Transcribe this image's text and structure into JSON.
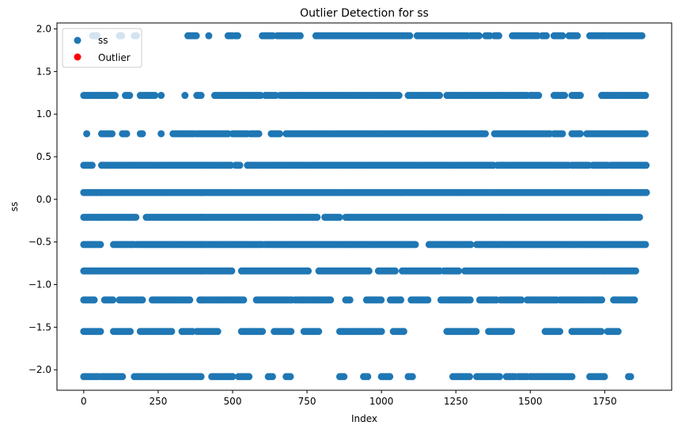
{
  "chart_data": {
    "type": "scatter",
    "title": "Outlier Detection for ss",
    "xlabel": "Index",
    "ylabel": "ss",
    "xlim": [
      -90,
      1975
    ],
    "ylim": [
      -2.24,
      2.07
    ],
    "x_ticks": [
      0,
      250,
      500,
      750,
      1000,
      1250,
      1500,
      1750
    ],
    "x_tick_labels": [
      "0",
      "250",
      "500",
      "750",
      "1000",
      "1250",
      "1500",
      "1750"
    ],
    "y_ticks": [
      -2.0,
      -1.5,
      -1.0,
      -0.5,
      0.0,
      0.5,
      1.0,
      1.5,
      2.0
    ],
    "y_tick_labels": [
      "−2.0",
      "−1.5",
      "−1.0",
      "−0.5",
      "0.0",
      "0.5",
      "1.0",
      "1.5",
      "2.0"
    ],
    "legend_position": "top-left",
    "grid": false,
    "series": [
      {
        "name": "ss",
        "color": "#1f77b4",
        "levels": [
          {
            "y": 1.92,
            "ranges": [
              [
                30,
                45
              ],
              [
                120,
                130
              ],
              [
                170,
                180
              ],
              [
                350,
                380
              ],
              [
                420,
                425
              ],
              [
                485,
                500
              ],
              [
                510,
                520
              ],
              [
                600,
                640
              ],
              [
                650,
                730
              ],
              [
                780,
                1100
              ],
              [
                1120,
                1290
              ],
              [
                1300,
                1330
              ],
              [
                1350,
                1370
              ],
              [
                1380,
                1400
              ],
              [
                1440,
                1530
              ],
              [
                1540,
                1560
              ],
              [
                1580,
                1610
              ],
              [
                1630,
                1660
              ],
              [
                1700,
                1880
              ]
            ]
          },
          {
            "y": 1.22,
            "ranges": [
              [
                0,
                110
              ],
              [
                140,
                160
              ],
              [
                190,
                240
              ],
              [
                260,
                265
              ],
              [
                340,
                345
              ],
              [
                380,
                400
              ],
              [
                440,
                600
              ],
              [
                610,
                650
              ],
              [
                660,
                1060
              ],
              [
                1090,
                1200
              ],
              [
                1220,
                1300
              ],
              [
                1300,
                1390
              ],
              [
                1390,
                1490
              ],
              [
                1500,
                1530
              ],
              [
                1580,
                1620
              ],
              [
                1640,
                1670
              ],
              [
                1740,
                1890
              ]
            ]
          },
          {
            "y": 0.77,
            "ranges": [
              [
                10,
                15
              ],
              [
                60,
                100
              ],
              [
                130,
                150
              ],
              [
                190,
                200
              ],
              [
                260,
                265
              ],
              [
                300,
                370
              ],
              [
                380,
                490
              ],
              [
                500,
                550
              ],
              [
                560,
                590
              ],
              [
                630,
                660
              ],
              [
                680,
                1300
              ],
              [
                1300,
                1350
              ],
              [
                1380,
                1440
              ],
              [
                1440,
                1570
              ],
              [
                1580,
                1610
              ],
              [
                1640,
                1670
              ],
              [
                1690,
                1890
              ]
            ]
          },
          {
            "y": 0.4,
            "ranges": [
              [
                0,
                30
              ],
              [
                60,
                500
              ],
              [
                510,
                530
              ],
              [
                550,
                1380
              ],
              [
                1390,
                1630
              ],
              [
                1640,
                1700
              ],
              [
                1710,
                1760
              ],
              [
                1770,
                1890
              ]
            ]
          },
          {
            "y": 0.08,
            "ranges": [
              [
                0,
                1890
              ]
            ]
          },
          {
            "y": -0.21,
            "ranges": [
              [
                0,
                180
              ],
              [
                210,
                790
              ],
              [
                810,
                860
              ],
              [
                880,
                1870
              ]
            ]
          },
          {
            "y": -0.53,
            "ranges": [
              [
                0,
                60
              ],
              [
                100,
                170
              ],
              [
                180,
                600
              ],
              [
                610,
                1120
              ],
              [
                1160,
                1300
              ],
              [
                1320,
                1890
              ]
            ]
          },
          {
            "y": -0.84,
            "ranges": [
              [
                0,
                500
              ],
              [
                530,
                760
              ],
              [
                790,
                960
              ],
              [
                990,
                1050
              ],
              [
                1070,
                1200
              ],
              [
                1210,
                1260
              ],
              [
                1280,
                1860
              ]
            ]
          },
          {
            "y": -1.18,
            "ranges": [
              [
                0,
                40
              ],
              [
                70,
                100
              ],
              [
                120,
                200
              ],
              [
                230,
                360
              ],
              [
                390,
                540
              ],
              [
                580,
                700
              ],
              [
                710,
                830
              ],
              [
                880,
                900
              ],
              [
                950,
                1000
              ],
              [
                1030,
                1070
              ],
              [
                1100,
                1160
              ],
              [
                1200,
                1300
              ],
              [
                1330,
                1390
              ],
              [
                1400,
                1470
              ],
              [
                1490,
                1590
              ],
              [
                1600,
                1740
              ],
              [
                1780,
                1850
              ]
            ]
          },
          {
            "y": -1.55,
            "ranges": [
              [
                0,
                60
              ],
              [
                100,
                160
              ],
              [
                190,
                300
              ],
              [
                330,
                370
              ],
              [
                380,
                450
              ],
              [
                530,
                600
              ],
              [
                640,
                700
              ],
              [
                740,
                790
              ],
              [
                860,
                1000
              ],
              [
                1040,
                1080
              ],
              [
                1220,
                1320
              ],
              [
                1360,
                1440
              ],
              [
                1550,
                1600
              ],
              [
                1640,
                1740
              ],
              [
                1760,
                1800
              ]
            ]
          },
          {
            "y": -2.08,
            "ranges": [
              [
                0,
                50
              ],
              [
                60,
                130
              ],
              [
                170,
                400
              ],
              [
                430,
                500
              ],
              [
                520,
                560
              ],
              [
                620,
                640
              ],
              [
                680,
                700
              ],
              [
                860,
                880
              ],
              [
                940,
                960
              ],
              [
                1000,
                1030
              ],
              [
                1090,
                1110
              ],
              [
                1240,
                1300
              ],
              [
                1320,
                1400
              ],
              [
                1420,
                1450
              ],
              [
                1460,
                1490
              ],
              [
                1500,
                1640
              ],
              [
                1700,
                1750
              ],
              [
                1830,
                1840
              ]
            ]
          }
        ]
      },
      {
        "name": "Outlier",
        "color": "#ff0000",
        "levels": []
      }
    ]
  }
}
